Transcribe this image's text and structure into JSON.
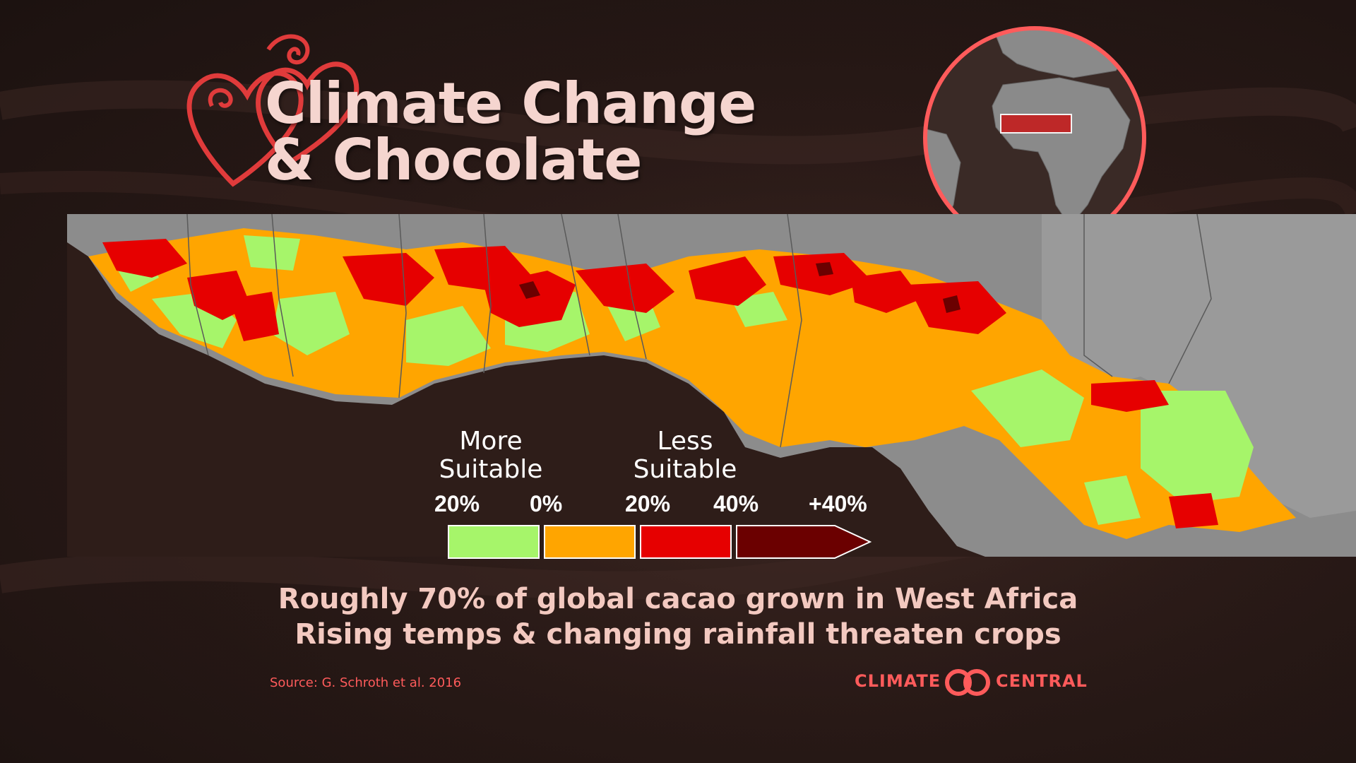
{
  "title": {
    "line1": "Climate Change",
    "line2": "& Chocolate"
  },
  "legend": {
    "more_label": "More Suitable",
    "less_label": "Less Suitable",
    "ticks": [
      "20%",
      "0%",
      "20%",
      "40%",
      "+40%"
    ],
    "colors": {
      "more": "#a6f56a",
      "neutral": "#ffa500",
      "less": "#e60000",
      "much_less": "#6b0000"
    }
  },
  "subtitle": {
    "line1": "Roughly 70% of global cacao grown in West Africa",
    "line2": "Rising temps & changing rainfall threaten crops"
  },
  "source": "Source: G. Schroth et al. 2016",
  "brand": {
    "left": "CLIMATE",
    "right": "CENTRAL",
    "color": "#ff5b5b"
  },
  "colors": {
    "background": "#2a1a17",
    "title_text": "#f5d5cf",
    "accent_red": "#ff5b5b",
    "land_gray": "#8c8c8c"
  }
}
